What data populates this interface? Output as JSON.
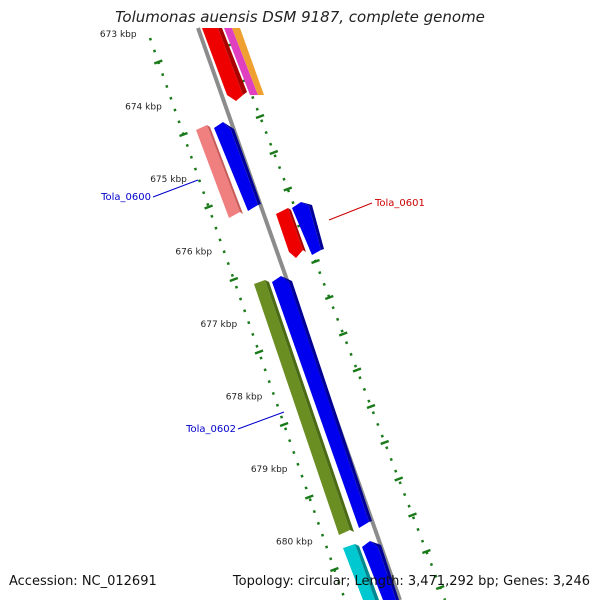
{
  "title": "Tolumonas auensis DSM 9187, complete genome",
  "footer": {
    "accession": "Accession: NC_012691",
    "summary": "Topology: circular; Length: 3,471,292 bp; Genes: 3,246"
  },
  "ticks": [
    "673 kbp",
    "674 kbp",
    "675 kbp",
    "676 kbp",
    "677 kbp",
    "678 kbp",
    "679 kbp",
    "680 kbp"
  ],
  "gene_labels": [
    {
      "name": "Tola_0600",
      "color": "#0000cc"
    },
    {
      "name": "Tola_0601",
      "color": "#cc0000"
    },
    {
      "name": "Tola_0602",
      "color": "#0000cc"
    }
  ],
  "colors": {
    "backbone": "#8c8c8c",
    "tick": "#1a7a1a",
    "blue": "#0000ee",
    "red": "#ee0000",
    "salmon": "#f08080",
    "olive": "#6b8e23",
    "cyan": "#00c8d0",
    "orange": "#f0a030",
    "magenta": "#e040c0"
  }
}
